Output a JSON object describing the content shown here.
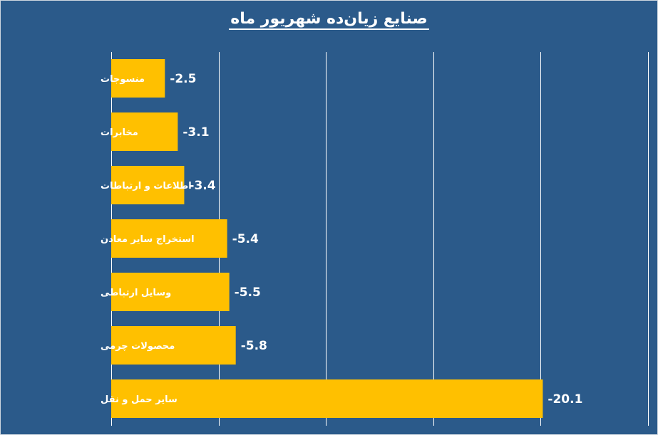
{
  "chart_data": {
    "type": "bar",
    "orientation": "horizontal",
    "title": "صنایع زیان‌ده شهریور ماه",
    "categories": [
      "منسوجات",
      "مخابرات",
      "اطلاعات و ارتباطات",
      "استخراج سایر معادن",
      "وسایل ارتباطی",
      "محصولات چرمی",
      "سایر حمل و نقل"
    ],
    "values": [
      -2.5,
      -3.1,
      -3.4,
      -5.4,
      -5.5,
      -5.8,
      -20.1
    ],
    "value_labels": [
      "-2.5",
      "-3.1",
      "-3.4",
      "-5.4",
      "-5.5",
      "-5.8",
      "-20.1"
    ],
    "xlim": [
      0,
      -25
    ],
    "grid": true,
    "legend": "none",
    "colors": {
      "background": "#2b5a8a",
      "bar": "#ffc000",
      "gridline": "#ffffff",
      "text": "#ffffff"
    }
  }
}
